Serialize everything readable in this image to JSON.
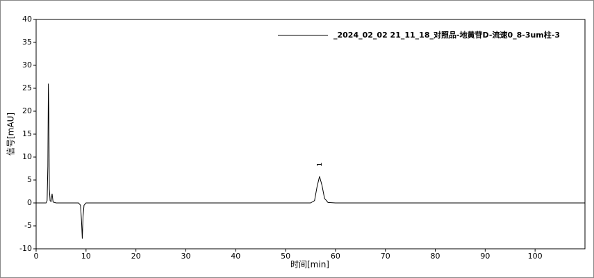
{
  "chart_data": {
    "type": "line",
    "xlabel": "时间[min]",
    "ylabel": "信号[mAU]",
    "x": [
      0,
      2.0,
      2.2,
      2.35,
      2.45,
      2.55,
      2.65,
      2.8,
      3.0,
      3.2,
      3.4,
      4,
      8.5,
      8.9,
      9.1,
      9.25,
      9.4,
      9.6,
      10,
      20,
      40,
      55,
      55.8,
      56.3,
      56.8,
      57.3,
      57.8,
      58.5,
      60,
      110
    ],
    "series": [
      {
        "name": "_2024_02_02  21_11_18_对照品-地黄苷D-流速0_8-3um柱-3",
        "color": "#000000",
        "values": [
          0,
          0,
          0.5,
          8,
          26,
          19.5,
          3,
          0.5,
          0.3,
          2,
          0.2,
          0,
          0,
          -0.5,
          -4,
          -7.8,
          -3,
          -0.5,
          0,
          0,
          0,
          0,
          0.5,
          3.5,
          5.8,
          3.8,
          1,
          0.1,
          0,
          0
        ]
      }
    ],
    "xlim": [
      0,
      110
    ],
    "ylim": [
      -10,
      40
    ],
    "xticks": [
      0,
      10,
      20,
      30,
      40,
      50,
      60,
      70,
      80,
      90,
      100
    ],
    "yticks": [
      -10,
      -5,
      0,
      5,
      10,
      15,
      20,
      25,
      30,
      35,
      40
    ],
    "peak_labels": [
      {
        "x": 56.8,
        "text": "1"
      }
    ],
    "legend": "top-right"
  }
}
